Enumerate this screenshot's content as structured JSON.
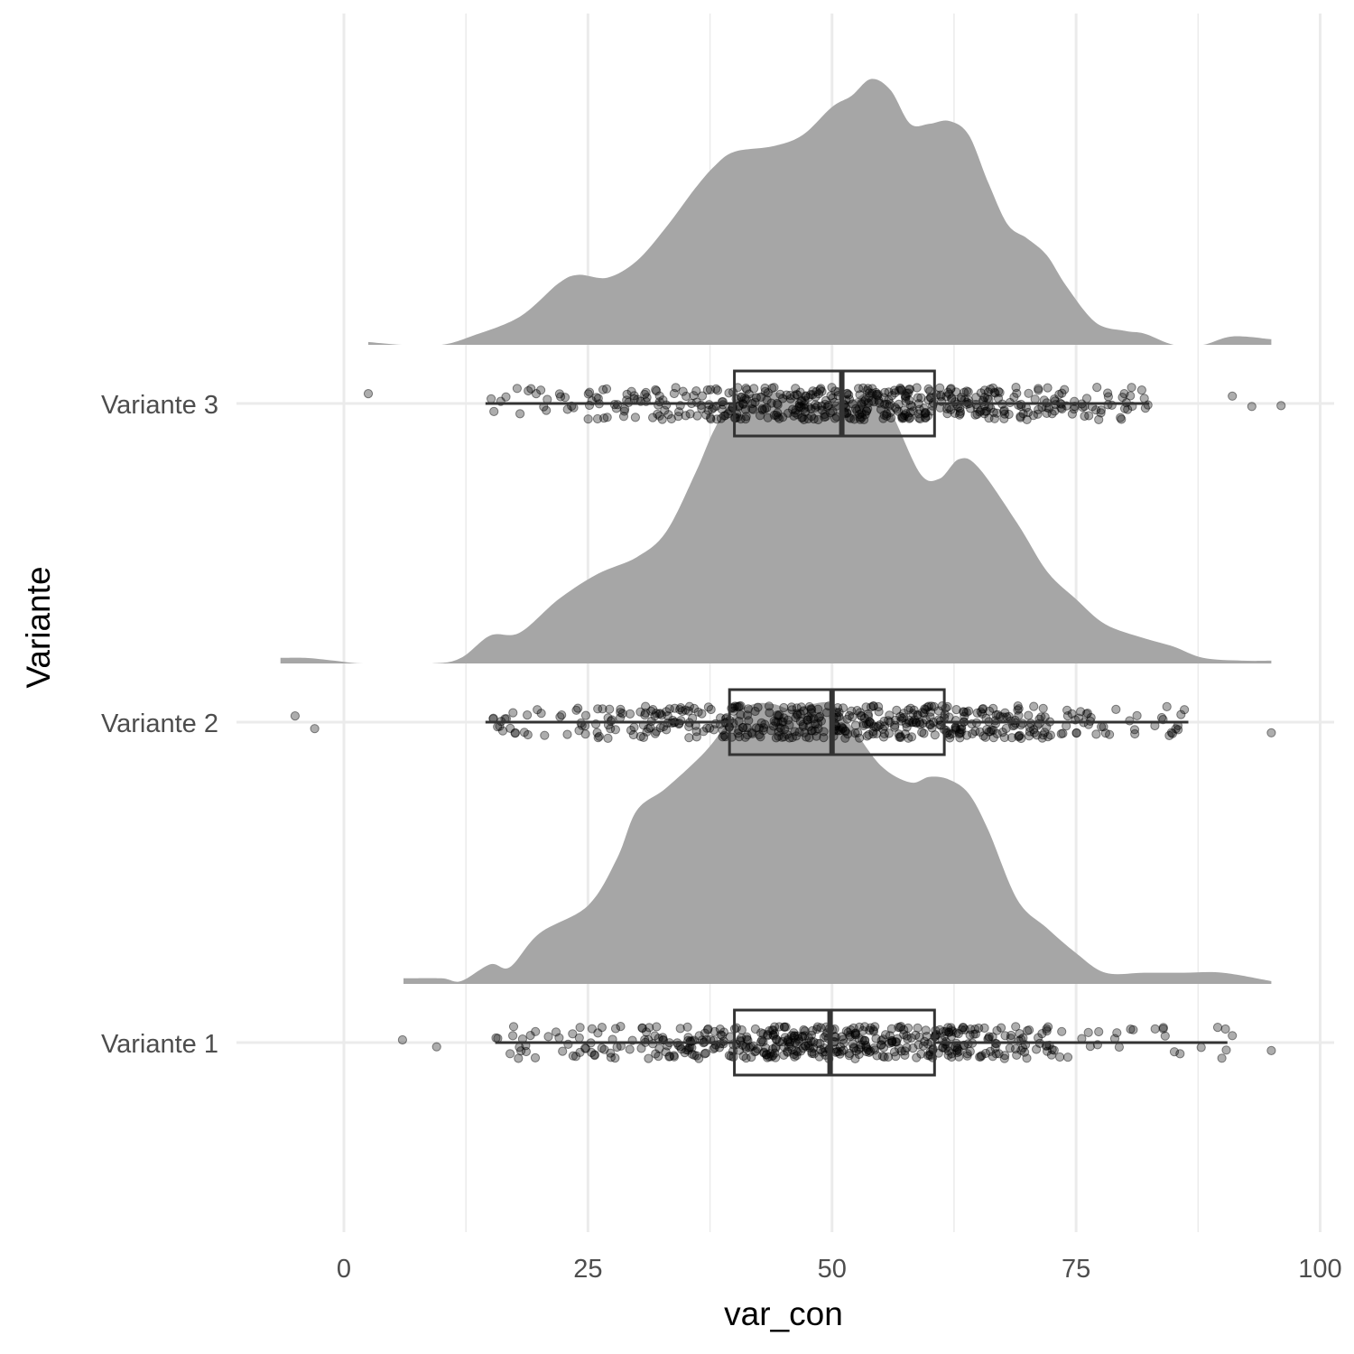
{
  "chart_data": {
    "type": "raincloud",
    "title": "",
    "xlabel": "var_con",
    "ylabel": "Variante",
    "xlim": [
      -8,
      102
    ],
    "x_ticks": [
      0,
      25,
      50,
      75,
      100
    ],
    "categories": [
      "Variante 1",
      "Variante 2",
      "Variante 3"
    ],
    "grid": "major and minor vertical, major horizontal",
    "colors": {
      "density": "#a6a6a6",
      "points": "#000000",
      "box": "#333333",
      "grid": "#ebebeb"
    },
    "series": [
      {
        "category": "Variante 1",
        "box": {
          "lower_whisker": 15.5,
          "q1": 40,
          "median": 49.8,
          "q3": 60.5,
          "upper_whisker": 90.5
        },
        "outliers": [
          6,
          9.5,
          91,
          95
        ],
        "density": [
          [
            6.1,
            0.02
          ],
          [
            10,
            0.02
          ],
          [
            12,
            0.01
          ],
          [
            15,
            0.07
          ],
          [
            17,
            0.06
          ],
          [
            20,
            0.18
          ],
          [
            25,
            0.28
          ],
          [
            28,
            0.45
          ],
          [
            30,
            0.62
          ],
          [
            33,
            0.7
          ],
          [
            37,
            0.83
          ],
          [
            40,
            0.96
          ],
          [
            42,
            1.0
          ],
          [
            44,
            1.0
          ],
          [
            46,
            0.98
          ],
          [
            48,
            1.0
          ],
          [
            50,
            1.0
          ],
          [
            52,
            0.92
          ],
          [
            55,
            0.78
          ],
          [
            58,
            0.72
          ],
          [
            60,
            0.74
          ],
          [
            62,
            0.73
          ],
          [
            64,
            0.68
          ],
          [
            66,
            0.55
          ],
          [
            69,
            0.3
          ],
          [
            72,
            0.2
          ],
          [
            75,
            0.11
          ],
          [
            78,
            0.04
          ],
          [
            82,
            0.04
          ],
          [
            86,
            0.04
          ],
          [
            90,
            0.04
          ],
          [
            95,
            0.01
          ]
        ]
      },
      {
        "category": "Variante 2",
        "box": {
          "lower_whisker": 14.5,
          "q1": 39.5,
          "median": 50,
          "q3": 61.5,
          "upper_whisker": 86.5
        },
        "outliers": [
          -5,
          -3,
          95
        ],
        "density": [
          [
            -6.5,
            0.02
          ],
          [
            -4,
            0.02
          ],
          [
            -1,
            0.01
          ],
          [
            2,
            0
          ],
          [
            9,
            0
          ],
          [
            12,
            0.02
          ],
          [
            15,
            0.1
          ],
          [
            18,
            0.11
          ],
          [
            22,
            0.23
          ],
          [
            26,
            0.32
          ],
          [
            30,
            0.38
          ],
          [
            33,
            0.47
          ],
          [
            36,
            0.68
          ],
          [
            38,
            0.84
          ],
          [
            40,
            0.94
          ],
          [
            44,
            0.97
          ],
          [
            47,
            0.93
          ],
          [
            49,
            0.92
          ],
          [
            52,
            0.94
          ],
          [
            54,
            0.97
          ],
          [
            56,
            0.9
          ],
          [
            59,
            0.68
          ],
          [
            61,
            0.66
          ],
          [
            63,
            0.73
          ],
          [
            65,
            0.7
          ],
          [
            69,
            0.5
          ],
          [
            72,
            0.33
          ],
          [
            75,
            0.23
          ],
          [
            78,
            0.14
          ],
          [
            82,
            0.09
          ],
          [
            85,
            0.06
          ],
          [
            88,
            0.02
          ],
          [
            92,
            0.01
          ],
          [
            95,
            0.01
          ]
        ]
      },
      {
        "category": "Variante 3",
        "box": {
          "lower_whisker": 14.5,
          "q1": 40,
          "median": 51,
          "q3": 60.5,
          "upper_whisker": 82.5
        },
        "outliers": [
          2.5,
          91,
          93,
          96
        ],
        "density": [
          [
            2.5,
            0.01
          ],
          [
            6,
            0
          ],
          [
            10,
            0
          ],
          [
            13,
            0.03
          ],
          [
            18,
            0.1
          ],
          [
            22,
            0.22
          ],
          [
            24,
            0.25
          ],
          [
            27,
            0.24
          ],
          [
            30,
            0.3
          ],
          [
            33,
            0.42
          ],
          [
            36,
            0.56
          ],
          [
            38,
            0.64
          ],
          [
            40,
            0.69
          ],
          [
            44,
            0.71
          ],
          [
            47,
            0.75
          ],
          [
            50,
            0.85
          ],
          [
            52,
            0.89
          ],
          [
            54,
            0.95
          ],
          [
            56,
            0.91
          ],
          [
            58,
            0.79
          ],
          [
            60,
            0.79
          ],
          [
            62,
            0.8
          ],
          [
            64,
            0.75
          ],
          [
            66,
            0.58
          ],
          [
            68,
            0.43
          ],
          [
            70,
            0.38
          ],
          [
            72,
            0.32
          ],
          [
            74,
            0.21
          ],
          [
            77,
            0.08
          ],
          [
            80,
            0.05
          ],
          [
            82,
            0.04
          ],
          [
            85,
            0
          ],
          [
            88,
            0
          ],
          [
            91,
            0.03
          ],
          [
            95,
            0.02
          ]
        ]
      }
    ]
  }
}
